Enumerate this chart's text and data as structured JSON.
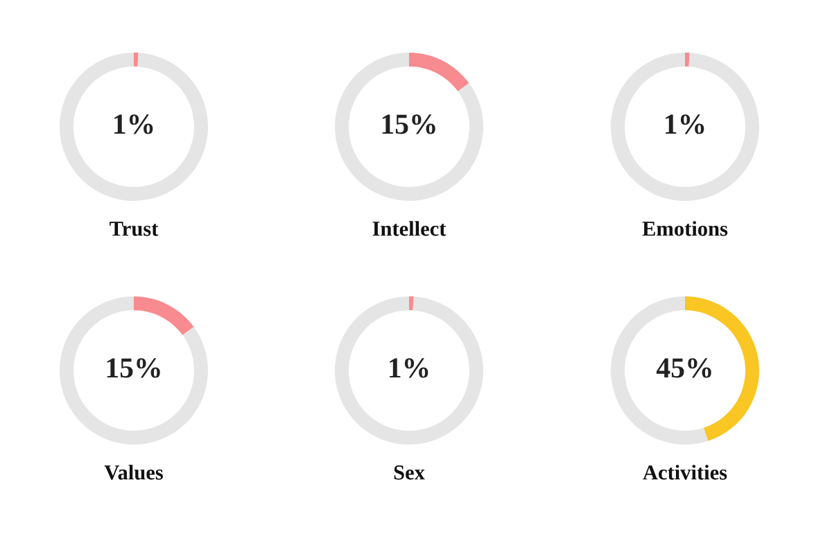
{
  "chart_data": [
    {
      "type": "donut",
      "title": "Trust",
      "categories": [
        null,
        null
      ],
      "values": [
        1,
        99
      ],
      "colors": [
        "#f88b8f",
        "#e5e5e5"
      ],
      "annotations": [
        "1%"
      ]
    },
    {
      "type": "donut",
      "title": "Intellect",
      "categories": [
        null,
        null
      ],
      "values": [
        15,
        85
      ],
      "colors": [
        "#f88b8f",
        "#e5e5e5"
      ],
      "annotations": [
        "15%"
      ]
    },
    {
      "type": "donut",
      "title": "Emotions",
      "categories": [
        null,
        null
      ],
      "values": [
        1,
        99
      ],
      "colors": [
        "#f88b8f",
        "#e5e5e5"
      ],
      "annotations": [
        "1%"
      ]
    },
    {
      "type": "donut",
      "title": "Values",
      "categories": [
        null,
        null
      ],
      "values": [
        15,
        85
      ],
      "colors": [
        "#f88b8f",
        "#e5e5e5"
      ],
      "annotations": [
        "15%"
      ]
    },
    {
      "type": "donut",
      "title": "Sex",
      "categories": [
        null,
        null
      ],
      "values": [
        1,
        99
      ],
      "colors": [
        "#f88b8f",
        "#e5e5e5"
      ],
      "annotations": [
        "1%"
      ]
    },
    {
      "type": "donut",
      "title": "Activities",
      "categories": [
        null,
        null
      ],
      "values": [
        45,
        55
      ],
      "colors": [
        "#f9c623",
        "#e5e5e5"
      ],
      "annotations": [
        "45%"
      ]
    }
  ]
}
